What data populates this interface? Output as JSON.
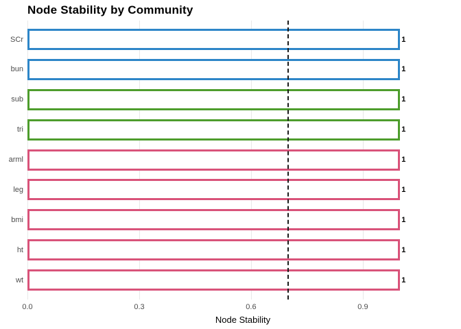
{
  "chart_data": {
    "type": "bar",
    "orientation": "horizontal",
    "title": "Node Stability by Community",
    "xlabel": "Node Stability",
    "ylabel": "",
    "categories": [
      "SCr",
      "bun",
      "sub",
      "tri",
      "arml",
      "leg",
      "bmi",
      "ht",
      "wt"
    ],
    "values": [
      1,
      1,
      1,
      1,
      1,
      1,
      1,
      1,
      1
    ],
    "value_labels": [
      "1",
      "1",
      "1",
      "1",
      "1",
      "1",
      "1",
      "1",
      "1"
    ],
    "bar_outline_colors": [
      "#2E86C8",
      "#2E86C8",
      "#4E9D2D",
      "#4E9D2D",
      "#D9537A",
      "#D9537A",
      "#D9537A",
      "#D9537A",
      "#D9537A"
    ],
    "bar_fill": "#FFFFFF",
    "x_ticks": [
      0,
      0.3,
      0.6,
      0.9
    ],
    "x_tick_labels": [
      "0.0",
      "0.3",
      "0.6",
      "0.9"
    ],
    "xlim": [
      0,
      1.156
    ],
    "reference_line": {
      "x": 0.7,
      "style": "dashed",
      "color": "#1A1A1A"
    },
    "grid": {
      "show": true,
      "color": "#E8E8E8"
    },
    "legend_position": "none",
    "colors": {
      "community_blue": "#2E86C8",
      "community_green": "#4E9D2D",
      "community_pink": "#D9537A",
      "axis_text": "#4D4D4D",
      "title_text": "#000000"
    }
  }
}
